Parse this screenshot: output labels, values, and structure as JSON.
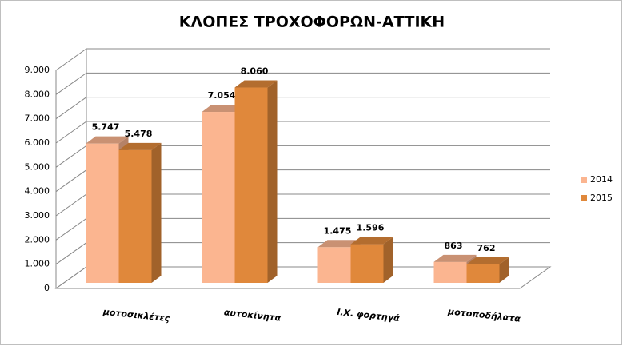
{
  "chart_data": {
    "type": "bar3d",
    "title": "ΚΛΟΠΕΣ ΤΡΟΧΟΦΟΡΩΝ-ΑΤΤΙΚΗ",
    "categories": [
      "μοτοσικλέτες",
      "αυτοκίνητα",
      "Ι.Χ. φορτηγά",
      "μοτοποδήλατα"
    ],
    "series": [
      {
        "name": "2014",
        "color": "#fbb590",
        "values": [
          5747,
          7054,
          1475,
          863
        ],
        "value_labels": [
          "5.747",
          "7.054",
          "1.475",
          "863"
        ]
      },
      {
        "name": "2015",
        "color": "#e0883b",
        "values": [
          5478,
          8060,
          1596,
          762
        ],
        "value_labels": [
          "5.478",
          "8.060",
          "1.596",
          "762"
        ]
      }
    ],
    "ylim": [
      0,
      9000
    ],
    "yticks": [
      0,
      {
        "value": 1000,
        "label": "1.000"
      },
      {
        "value": 2000,
        "label": "2.000"
      },
      {
        "value": 3000,
        "label": "3.000"
      },
      {
        "value": 4000,
        "label": "4.000"
      },
      {
        "value": 5000,
        "label": "5.000"
      },
      {
        "value": 6000,
        "label": "6.000"
      },
      {
        "value": 7000,
        "label": "7.000"
      },
      {
        "value": 8000,
        "label": "8.000"
      },
      {
        "value": 9000,
        "label": "9.000"
      }
    ],
    "grid": true,
    "legend": "right"
  }
}
